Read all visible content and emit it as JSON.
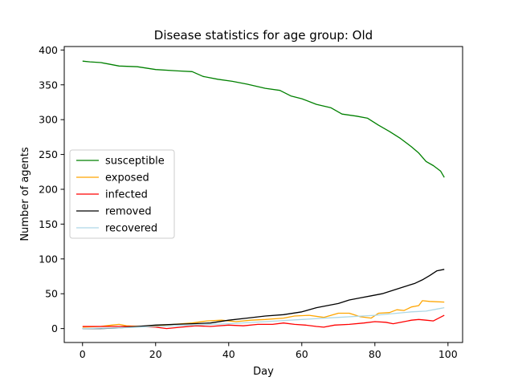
{
  "chart_data": {
    "type": "line",
    "title": "Disease statistics for age group: Old",
    "xlabel": "Day",
    "ylabel": "Number of agents",
    "xlim": [
      -5,
      104
    ],
    "ylim": [
      -20,
      405
    ],
    "xticks": [
      0,
      20,
      40,
      60,
      80,
      100
    ],
    "yticks": [
      0,
      50,
      100,
      150,
      200,
      250,
      300,
      350,
      400
    ],
    "grid": false,
    "legend_position": "center-left",
    "series": [
      {
        "name": "susceptible",
        "color": "#008000",
        "points": [
          [
            0,
            384
          ],
          [
            2,
            383
          ],
          [
            5,
            382
          ],
          [
            7,
            380
          ],
          [
            10,
            377
          ],
          [
            15,
            376
          ],
          [
            20,
            372
          ],
          [
            26,
            370
          ],
          [
            30,
            369
          ],
          [
            33,
            362
          ],
          [
            37,
            358
          ],
          [
            41,
            355
          ],
          [
            45,
            351
          ],
          [
            50,
            345
          ],
          [
            54,
            342
          ],
          [
            57,
            334
          ],
          [
            60,
            330
          ],
          [
            64,
            322
          ],
          [
            68,
            317
          ],
          [
            71,
            308
          ],
          [
            75,
            305
          ],
          [
            78,
            302
          ],
          [
            81,
            292
          ],
          [
            84,
            283
          ],
          [
            87,
            273
          ],
          [
            90,
            261
          ],
          [
            92,
            252
          ],
          [
            94,
            240
          ],
          [
            96,
            234
          ],
          [
            98,
            226
          ],
          [
            99,
            217
          ]
        ]
      },
      {
        "name": "exposed",
        "color": "#FFA500",
        "points": [
          [
            0,
            2
          ],
          [
            5,
            3
          ],
          [
            8,
            5
          ],
          [
            10,
            6
          ],
          [
            12,
            4
          ],
          [
            16,
            3
          ],
          [
            20,
            4
          ],
          [
            25,
            6
          ],
          [
            30,
            8
          ],
          [
            34,
            11
          ],
          [
            38,
            12
          ],
          [
            42,
            10
          ],
          [
            46,
            12
          ],
          [
            50,
            13
          ],
          [
            55,
            15
          ],
          [
            58,
            18
          ],
          [
            62,
            19
          ],
          [
            66,
            16
          ],
          [
            70,
            22
          ],
          [
            73,
            22
          ],
          [
            76,
            17
          ],
          [
            79,
            15
          ],
          [
            81,
            22
          ],
          [
            84,
            23
          ],
          [
            86,
            27
          ],
          [
            88,
            26
          ],
          [
            90,
            31
          ],
          [
            92,
            33
          ],
          [
            93,
            40
          ],
          [
            95,
            39
          ],
          [
            99,
            38
          ]
        ]
      },
      {
        "name": "infected",
        "color": "#FF0000",
        "points": [
          [
            0,
            3
          ],
          [
            5,
            3
          ],
          [
            10,
            3
          ],
          [
            15,
            3
          ],
          [
            20,
            2
          ],
          [
            23,
            0
          ],
          [
            27,
            2
          ],
          [
            31,
            4
          ],
          [
            35,
            3
          ],
          [
            40,
            5
          ],
          [
            44,
            4
          ],
          [
            48,
            6
          ],
          [
            52,
            6
          ],
          [
            55,
            8
          ],
          [
            58,
            6
          ],
          [
            61,
            5
          ],
          [
            64,
            3
          ],
          [
            66,
            2
          ],
          [
            69,
            5
          ],
          [
            73,
            6
          ],
          [
            77,
            8
          ],
          [
            80,
            10
          ],
          [
            83,
            9
          ],
          [
            85,
            7
          ],
          [
            88,
            10
          ],
          [
            90,
            12
          ],
          [
            92,
            13
          ],
          [
            94,
            12
          ],
          [
            96,
            11
          ],
          [
            99,
            19
          ]
        ]
      },
      {
        "name": "removed",
        "color": "#000000",
        "points": [
          [
            0,
            0
          ],
          [
            5,
            0
          ],
          [
            10,
            1
          ],
          [
            15,
            3
          ],
          [
            20,
            5
          ],
          [
            25,
            6
          ],
          [
            30,
            7
          ],
          [
            35,
            8
          ],
          [
            40,
            12
          ],
          [
            45,
            15
          ],
          [
            50,
            18
          ],
          [
            55,
            20
          ],
          [
            60,
            24
          ],
          [
            64,
            30
          ],
          [
            67,
            33
          ],
          [
            70,
            36
          ],
          [
            73,
            41
          ],
          [
            76,
            44
          ],
          [
            79,
            47
          ],
          [
            82,
            50
          ],
          [
            85,
            55
          ],
          [
            88,
            60
          ],
          [
            91,
            65
          ],
          [
            93,
            70
          ],
          [
            95,
            76
          ],
          [
            97,
            83
          ],
          [
            99,
            85
          ]
        ]
      },
      {
        "name": "recovered",
        "color": "#ADD8E6",
        "points": [
          [
            0,
            0
          ],
          [
            10,
            1
          ],
          [
            20,
            3
          ],
          [
            30,
            5
          ],
          [
            40,
            7
          ],
          [
            50,
            10
          ],
          [
            60,
            13
          ],
          [
            70,
            16
          ],
          [
            80,
            19
          ],
          [
            90,
            24
          ],
          [
            94,
            25
          ],
          [
            97,
            28
          ],
          [
            99,
            30
          ]
        ]
      }
    ]
  }
}
